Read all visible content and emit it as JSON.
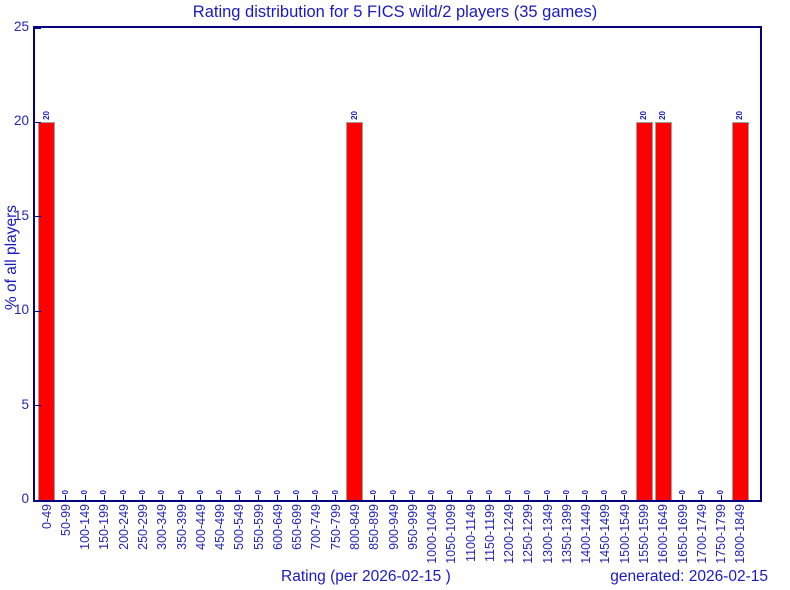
{
  "title": "Rating distribution for 5 FICS wild/2 players (35 games)",
  "footer": {
    "rating_label": "Rating (per 2026-02-15 )",
    "generated_label": "generated: 2026-02-15"
  },
  "colors": {
    "bar_fill": "#ff0000",
    "bar_outline": "#a0a0a0",
    "frame": "#000080",
    "text": "#1a1ac2"
  },
  "chart_data": {
    "type": "bar",
    "title": "Rating distribution for 5 FICS wild/2 players (35 games)",
    "xlabel": "Rating (per 2026-02-15 )",
    "ylabel": "% of all players",
    "generated": "generated: 2026-02-15",
    "categories": [
      "0-49",
      "50-99",
      "100-149",
      "150-199",
      "200-249",
      "250-299",
      "300-349",
      "350-399",
      "400-449",
      "450-499",
      "500-549",
      "550-599",
      "600-649",
      "650-699",
      "700-749",
      "750-799",
      "800-849",
      "850-899",
      "900-949",
      "950-999",
      "1000-1049",
      "1050-1099",
      "1100-1149",
      "1150-1199",
      "1200-1249",
      "1250-1299",
      "1300-1349",
      "1350-1399",
      "1400-1449",
      "1450-1499",
      "1500-1549",
      "1550-1599",
      "1600-1649",
      "1650-1699",
      "1700-1749",
      "1750-1799",
      "1800-1849"
    ],
    "values": [
      20,
      0,
      0,
      0,
      0,
      0,
      0,
      0,
      0,
      0,
      0,
      0,
      0,
      0,
      0,
      0,
      20,
      0,
      0,
      0,
      0,
      0,
      0,
      0,
      0,
      0,
      0,
      0,
      0,
      0,
      0,
      20,
      20,
      0,
      0,
      0,
      20
    ],
    "ylim": [
      0,
      25
    ],
    "yticks": [
      0,
      5,
      10,
      15,
      20,
      25
    ],
    "bar_value_labels": true,
    "grid": false,
    "legend": false
  }
}
